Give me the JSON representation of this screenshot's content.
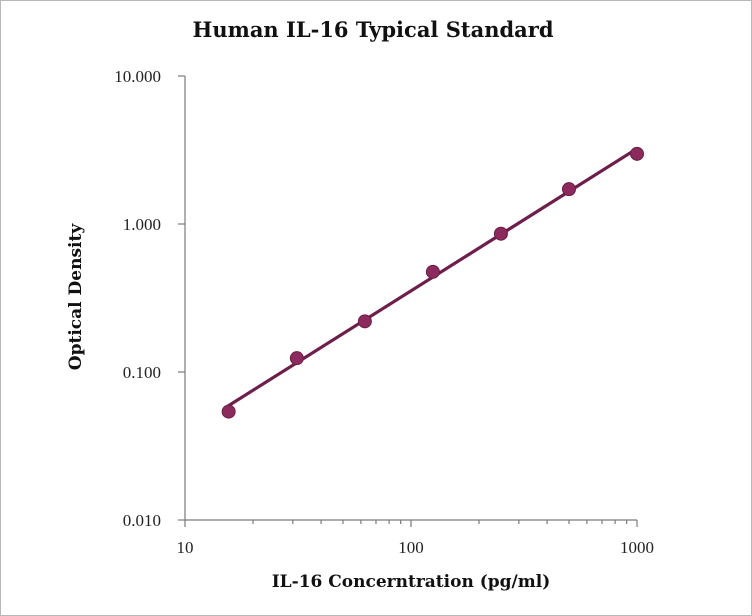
{
  "chart_data": {
    "type": "scatter",
    "title": "Human IL-16 Typical Standard",
    "xlabel": "IL-16 Concerntration (pg/ml)",
    "ylabel": "Optical Density",
    "x_scale": "log",
    "y_scale": "log",
    "xlim": [
      10,
      1000
    ],
    "ylim": [
      0.01,
      10
    ],
    "x_ticks": [
      "10",
      "100",
      "1000"
    ],
    "y_ticks": [
      "10.000",
      "1.000",
      "0.100",
      "0.010"
    ],
    "grid": false,
    "legend": "none",
    "series": [
      {
        "x": [
          15.6,
          31.25,
          62.5,
          125,
          250,
          500,
          1000
        ],
        "y": [
          0.054,
          0.124,
          0.22,
          0.475,
          0.86,
          1.72,
          2.98
        ],
        "fit_line": true
      }
    ],
    "colors": {
      "marker": "#8c2a5e",
      "line": "#6e1e4a",
      "axis": "#7a7a7a"
    }
  }
}
